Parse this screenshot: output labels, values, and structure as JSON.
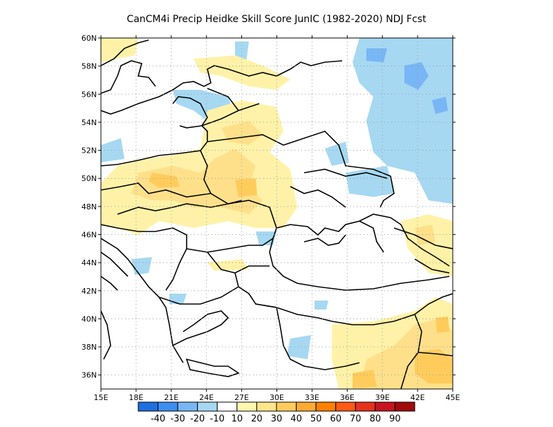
{
  "title": "CanCM4i Precip Heidke Skill Score JunIC (1982-2020) NDJ Fcst",
  "map": {
    "lon_range": [
      15,
      45
    ],
    "lat_range": [
      35,
      60
    ],
    "lat_labels": [
      "36N",
      "38N",
      "40N",
      "42N",
      "44N",
      "46N",
      "48N",
      "50N",
      "52N",
      "54N",
      "56N",
      "58N",
      "60N"
    ],
    "lon_labels": [
      "15E",
      "18E",
      "21E",
      "24E",
      "27E",
      "30E",
      "33E",
      "36E",
      "39E",
      "42E",
      "45E"
    ],
    "grid": "dotted"
  },
  "colorbar": {
    "colors": [
      "#1e6fe0",
      "#3c8ef0",
      "#78b6f5",
      "#a6d8f2",
      "#ffffff",
      "#fff7b0",
      "#ffe48a",
      "#ffcc5c",
      "#ffaa33",
      "#ff8000",
      "#ff5a14",
      "#e6321e",
      "#c8141e",
      "#a00a0a"
    ],
    "labels": [
      "-40",
      "-30",
      "-20",
      "-10",
      "10",
      "20",
      "30",
      "40",
      "50",
      "60",
      "70",
      "80",
      "90"
    ]
  },
  "colors": {
    "land_outline": "#000000",
    "grid_line": "#999999",
    "light_blue": "#a6d8f2",
    "mid_blue": "#78b6f5",
    "light_yellow": "#fff2a8",
    "yellow": "#ffe08a",
    "orange": "#ffcc5c"
  }
}
